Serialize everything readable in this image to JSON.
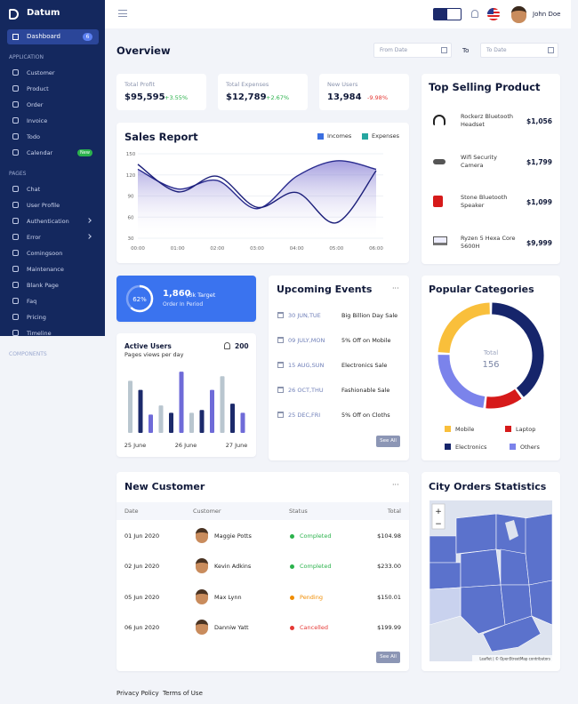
{
  "sidebar": {
    "brand": "Datum",
    "active": {
      "label": "Dashboard",
      "badge": "6"
    },
    "sections": [
      {
        "title": "APPLICATION",
        "items": [
          {
            "label": "Customer"
          },
          {
            "label": "Product"
          },
          {
            "label": "Order"
          },
          {
            "label": "Invoice"
          },
          {
            "label": "Todo"
          },
          {
            "label": "Calendar",
            "badge": "New"
          }
        ]
      },
      {
        "title": "PAGES",
        "items": [
          {
            "label": "Chat"
          },
          {
            "label": "User Profile"
          },
          {
            "label": "Authentication",
            "submenu": true
          },
          {
            "label": "Error",
            "submenu": true
          },
          {
            "label": "Comingsoon"
          },
          {
            "label": "Maintenance"
          },
          {
            "label": "Blank Page"
          },
          {
            "label": "Faq"
          },
          {
            "label": "Pricing"
          },
          {
            "label": "Timeline"
          }
        ]
      }
    ],
    "footer_section": "COMPONENTS"
  },
  "header": {
    "user": "John Doe"
  },
  "overview": {
    "title": "Overview",
    "from_date": "From Date",
    "to": "To",
    "to_date": "To Date"
  },
  "stats": [
    {
      "label": "Total Profit",
      "value": "$95,595",
      "change": "+3.55%",
      "change_color": "#2bb24c"
    },
    {
      "label": "Total Expenses",
      "value": "$12,789",
      "change": "+2.67%",
      "change_color": "#2bb24c"
    },
    {
      "label": "New Users",
      "value": "13,984",
      "change": "-9.98%",
      "change_color": "#e53935"
    }
  ],
  "sales_report": {
    "type": "line",
    "title": "Sales Report",
    "categories": [
      "00:00",
      "01:00",
      "02:00",
      "03:00",
      "04:00",
      "05:00",
      "06:00"
    ],
    "series": [
      {
        "name": "Incomes",
        "color": "#3b6fe0",
        "line_color": "#2a2c8f",
        "area": true,
        "values": [
          128,
          100,
          112,
          72,
          118,
          140,
          128
        ]
      },
      {
        "name": "Expenses",
        "color": "#26a6a0",
        "line_color": "#1c1f7a",
        "area": false,
        "values": [
          135,
          96,
          118,
          74,
          95,
          52,
          126
        ]
      }
    ],
    "ylim": [
      30,
      150
    ],
    "yticks": [
      30,
      60,
      90,
      120,
      150
    ],
    "grid": true
  },
  "top_selling": {
    "title": "Top Selling Product",
    "products": [
      {
        "name": "Rockerz Bluetooth Headset",
        "price": "$1,056"
      },
      {
        "name": "Wifi Security Camera",
        "price": "$1,799"
      },
      {
        "name": "Stone Bluetooth Speaker",
        "price": "$1,099"
      },
      {
        "name": "Ryzen 5 Hexa Core 5600H",
        "price": "$9,999"
      }
    ]
  },
  "target": {
    "progress": {
      "value": 62,
      "label": "62%"
    },
    "orders": "1,860",
    "goal": "/3k Target",
    "caption": "Order In Period"
  },
  "active_users": {
    "type": "bar",
    "title": "Active Users",
    "subtitle": "Pages views per day",
    "count": "200",
    "ylim": [
      0,
      70
    ],
    "values": [
      57,
      47,
      20,
      30,
      22,
      67,
      22,
      25,
      47,
      62,
      32,
      22
    ],
    "colors": [
      "#b9c6cf",
      "#1c2a6b",
      "#6f6bd8",
      "#b9c6cf",
      "#1c2a6b",
      "#6f6bd8",
      "#b9c6cf",
      "#1c2a6b",
      "#6f6bd8",
      "#b9c6cf",
      "#1c2a6b",
      "#6f6bd8"
    ],
    "labels": [
      "25 June",
      "26 June",
      "27 June"
    ]
  },
  "events": {
    "title": "Upcoming Events",
    "menu": "···",
    "items": [
      {
        "date": "30 JUN,TUE",
        "title": "Big Billion Day Sale"
      },
      {
        "date": "09 JULY,MON",
        "title": "5% Off on Mobile"
      },
      {
        "date": "15 AUG,SUN",
        "title": "Electronics Sale"
      },
      {
        "date": "26 OCT,THU",
        "title": "Fashionable Sale"
      },
      {
        "date": "25 DEC,FRI",
        "title": "5% Off on Cloths"
      }
    ],
    "button": "See All"
  },
  "categories": {
    "type": "pie",
    "title": "Popular Categories",
    "center_label": "Total",
    "total": "156",
    "segments": [
      {
        "name": "Electronics",
        "color": "#16256b",
        "value": 62
      },
      {
        "name": "Laptop",
        "color": "#d61a1a",
        "value": 19
      },
      {
        "name": "Others",
        "color": "#7b83eb",
        "value": 37
      },
      {
        "name": "Mobile",
        "color": "#f9bf3b",
        "value": 38
      }
    ]
  },
  "customers": {
    "title": "New Customer",
    "menu": "···",
    "columns": [
      "Date",
      "Customer",
      "Status",
      "Total"
    ],
    "rows": [
      {
        "date": "01 Jun 2020",
        "name": "Maggie Potts",
        "status": "Completed",
        "status_color": "#2bb24c",
        "total": "$104.98"
      },
      {
        "date": "02 Jun 2020",
        "name": "Kevin Adkins",
        "status": "Completed",
        "status_color": "#2bb24c",
        "total": "$233.00"
      },
      {
        "date": "05 Jun 2020",
        "name": "Max Lynn",
        "status": "Pending",
        "status_color": "#f08c00",
        "total": "$150.01"
      },
      {
        "date": "06 Jun 2020",
        "name": "Danniw Yatt",
        "status": "Cancelled",
        "status_color": "#e53935",
        "total": "$199.99"
      }
    ],
    "button": "See All"
  },
  "map": {
    "title": "City Orders Statistics",
    "zoom_in": "+",
    "zoom_out": "−",
    "attribution": "Leaflet | © OpenStreetMap contributors"
  },
  "footer": {
    "links": [
      "Privacy Policy",
      "Terms of Use"
    ]
  }
}
